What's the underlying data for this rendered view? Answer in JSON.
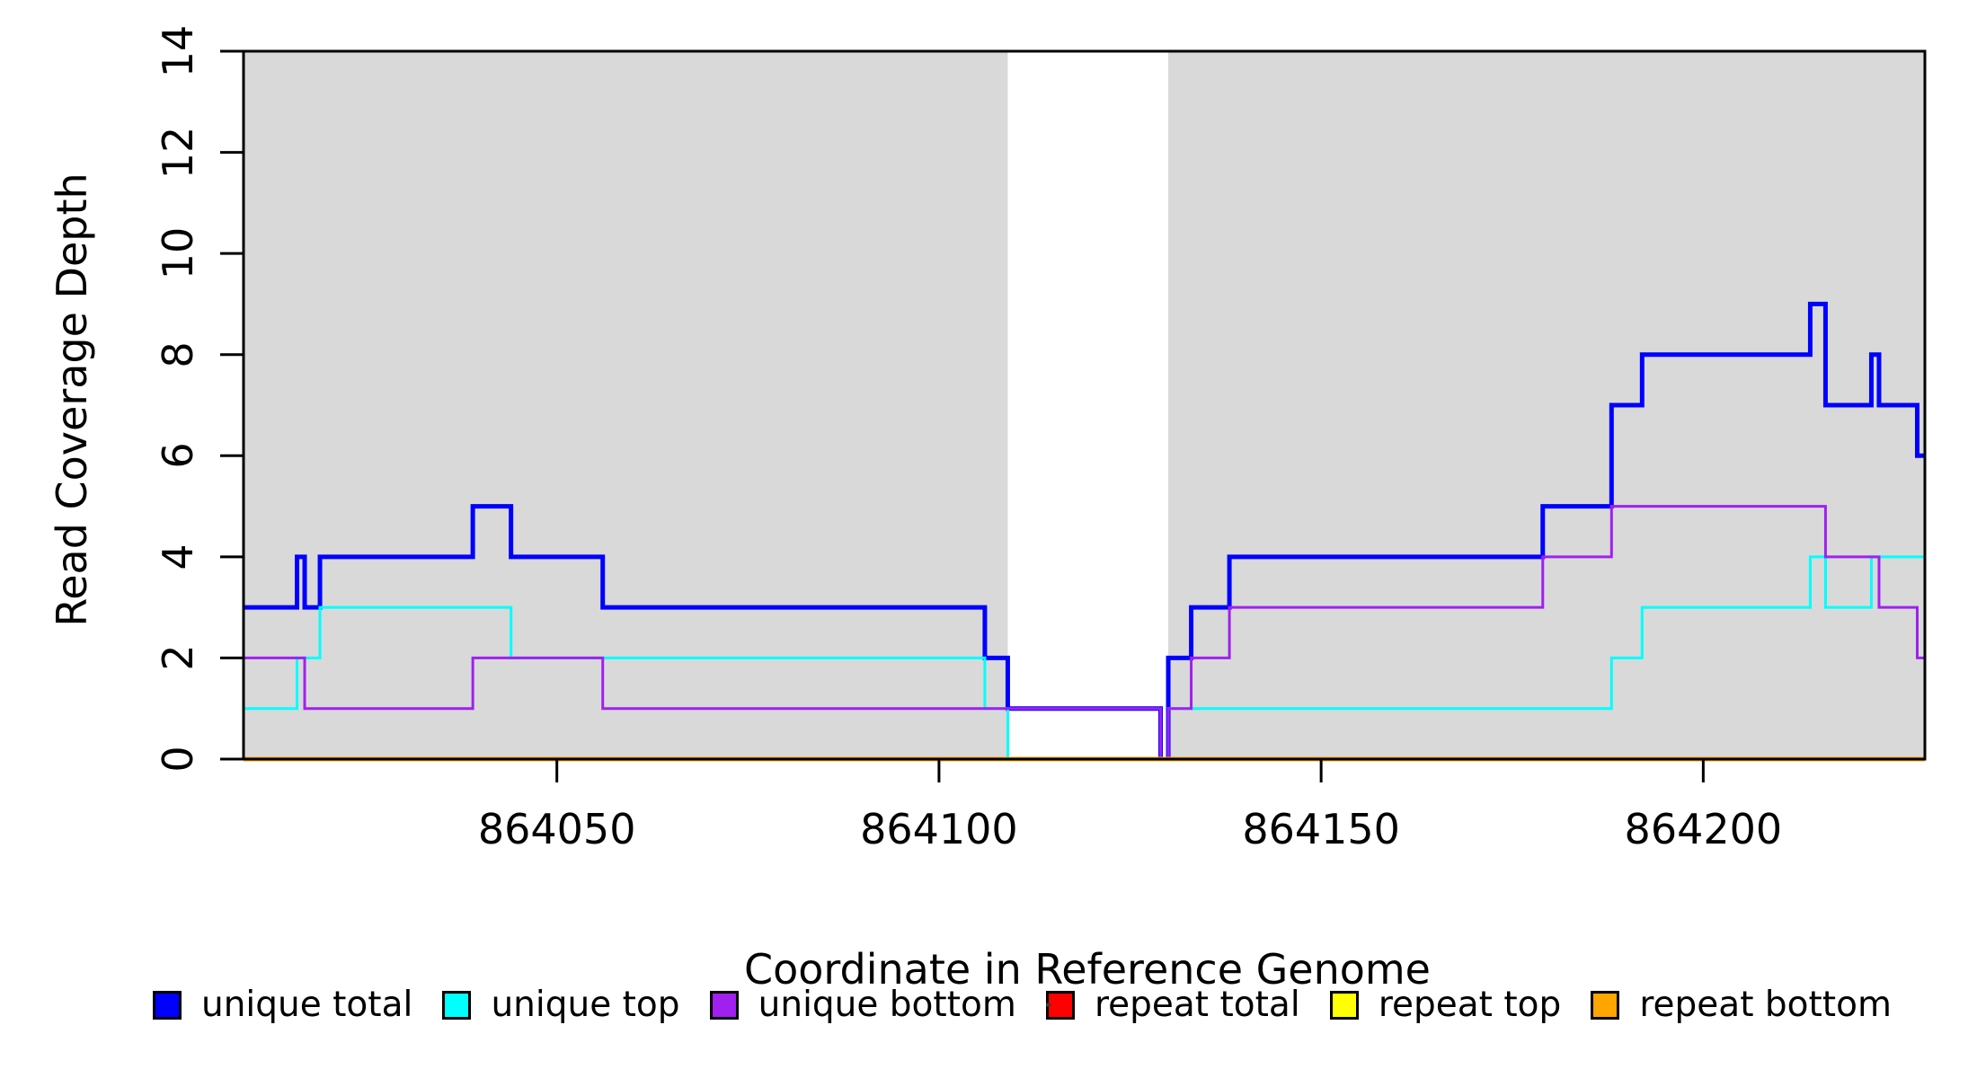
{
  "chart_data": {
    "type": "line",
    "step": "after",
    "title": "",
    "xlabel": "Coordinate in Reference Genome",
    "ylabel": "Read Coverage Depth",
    "xlim": [
      864009,
      864229
    ],
    "ylim": [
      0,
      14
    ],
    "x_ticks": [
      864050,
      864100,
      864150,
      864200
    ],
    "y_ticks": [
      0,
      2,
      4,
      6,
      8,
      10,
      12,
      14
    ],
    "grid": false,
    "plot_bg": "#FFFFFF",
    "shaded_color": "#D9D9D9",
    "shaded_regions": [
      [
        864009,
        864109
      ],
      [
        864130,
        864229
      ]
    ],
    "series": [
      {
        "name": "unique total",
        "color": "#0000FF",
        "line_width": 5,
        "points": [
          [
            864009,
            3
          ],
          [
            864016,
            4
          ],
          [
            864017,
            3
          ],
          [
            864019,
            4
          ],
          [
            864039,
            5
          ],
          [
            864044,
            4
          ],
          [
            864056,
            3
          ],
          [
            864106,
            2
          ],
          [
            864109,
            1
          ],
          [
            864129,
            0
          ],
          [
            864130,
            2
          ],
          [
            864133,
            3
          ],
          [
            864138,
            4
          ],
          [
            864179,
            5
          ],
          [
            864188,
            7
          ],
          [
            864192,
            8
          ],
          [
            864214,
            9
          ],
          [
            864216,
            7
          ],
          [
            864222,
            8
          ],
          [
            864223,
            7
          ],
          [
            864228,
            6
          ]
        ],
        "x_end": 864229
      },
      {
        "name": "unique top",
        "color": "#00FFFF",
        "line_width": 3,
        "points": [
          [
            864009,
            1
          ],
          [
            864016,
            2
          ],
          [
            864019,
            3
          ],
          [
            864044,
            2
          ],
          [
            864106,
            1
          ],
          [
            864109,
            0
          ],
          [
            864130,
            1
          ],
          [
            864188,
            2
          ],
          [
            864192,
            3
          ],
          [
            864214,
            4
          ],
          [
            864216,
            3
          ],
          [
            864222,
            4
          ]
        ],
        "x_end": 864229
      },
      {
        "name": "unique bottom",
        "color": "#A020F0",
        "line_width": 3,
        "points": [
          [
            864009,
            2
          ],
          [
            864017,
            1
          ],
          [
            864039,
            2
          ],
          [
            864056,
            1
          ],
          [
            864129,
            0
          ],
          [
            864130,
            1
          ],
          [
            864133,
            2
          ],
          [
            864138,
            3
          ],
          [
            864179,
            4
          ],
          [
            864188,
            5
          ],
          [
            864216,
            4
          ],
          [
            864223,
            3
          ],
          [
            864228,
            2
          ]
        ],
        "x_end": 864229
      },
      {
        "name": "repeat total",
        "color": "#FF0000",
        "line_width": 3,
        "points": [
          [
            864009,
            0
          ]
        ],
        "x_end": 864229
      },
      {
        "name": "repeat top",
        "color": "#FFFF00",
        "line_width": 3,
        "points": [
          [
            864009,
            0
          ]
        ],
        "x_end": 864229
      },
      {
        "name": "repeat bottom",
        "color": "#FFA500",
        "line_width": 5,
        "points": [
          [
            864009,
            0
          ]
        ],
        "x_end": 864229
      }
    ],
    "legend": {
      "position": "bottom",
      "items": [
        {
          "label": "unique total",
          "color": "#0000FF"
        },
        {
          "label": "unique top",
          "color": "#00FFFF"
        },
        {
          "label": "unique bottom",
          "color": "#A020F0"
        },
        {
          "label": "repeat total",
          "color": "#FF0000"
        },
        {
          "label": "repeat top",
          "color": "#FFFF00"
        },
        {
          "label": "repeat bottom",
          "color": "#FFA500"
        }
      ]
    }
  }
}
